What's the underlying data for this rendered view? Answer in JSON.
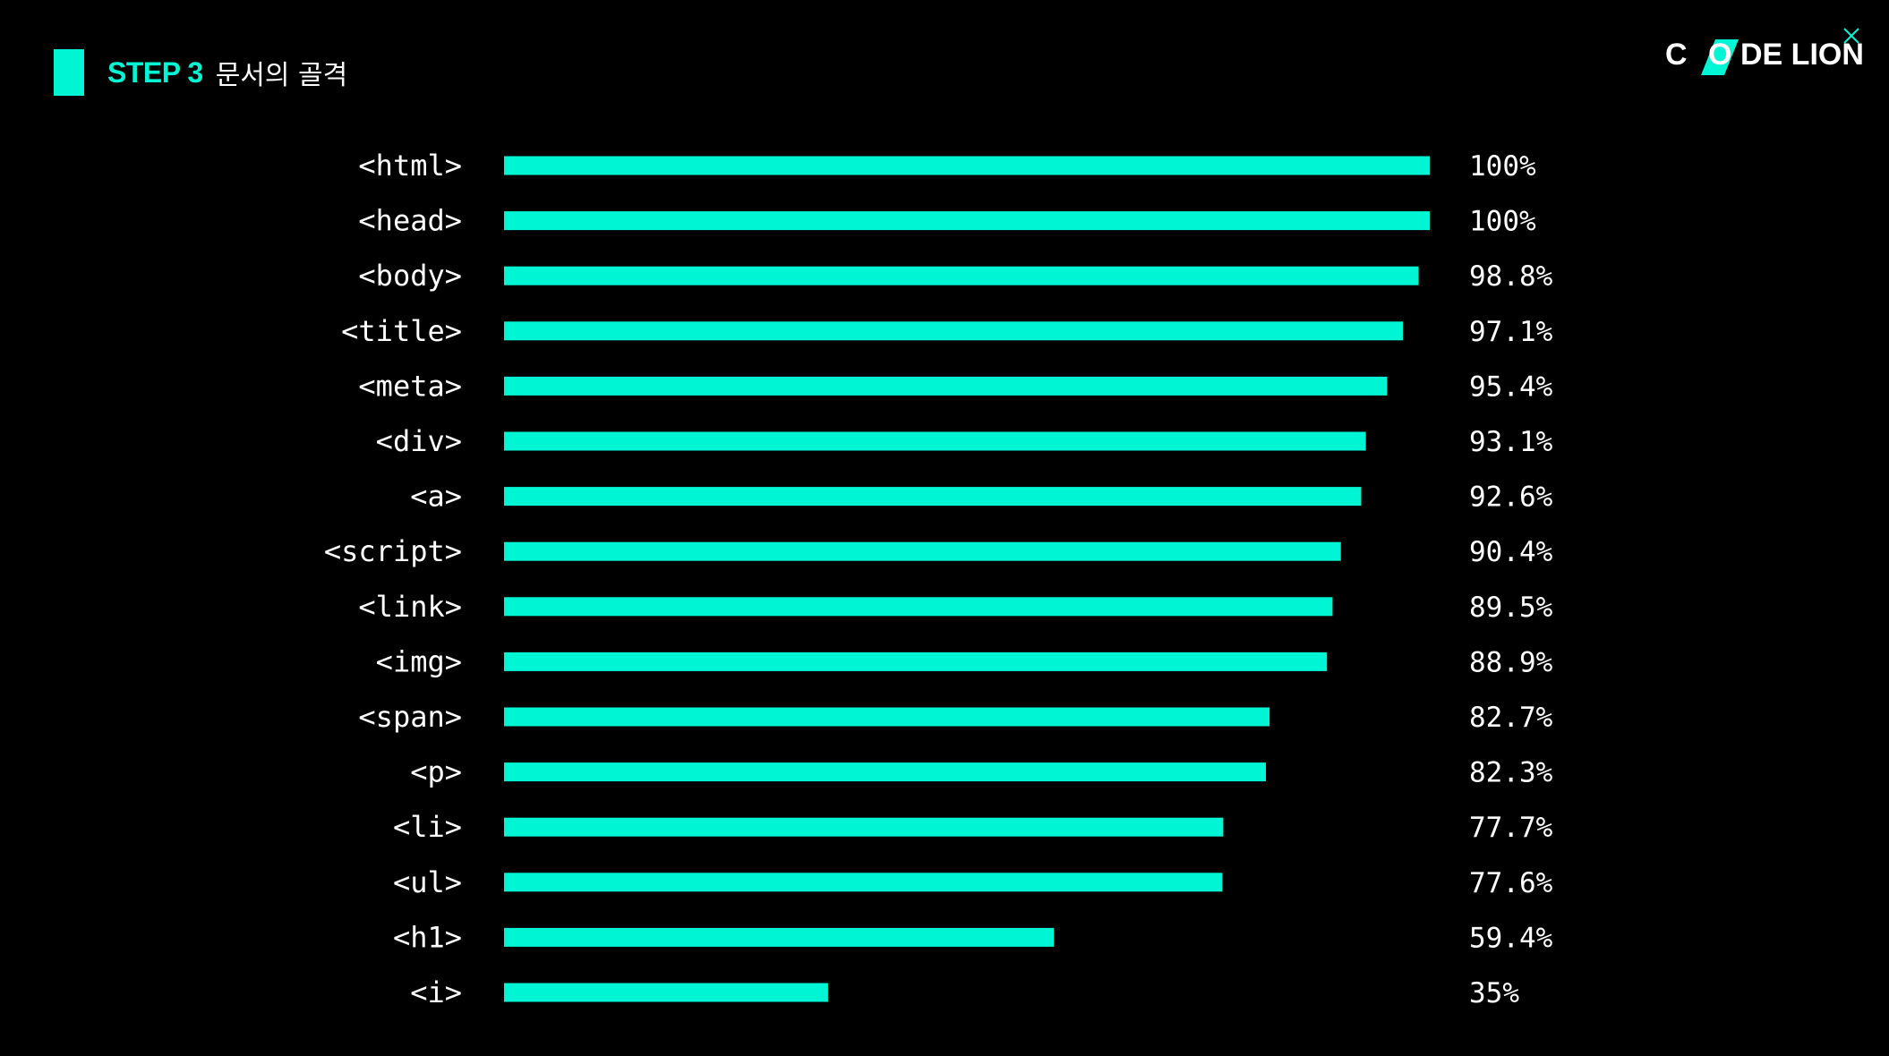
{
  "header": {
    "step_label": "STEP 3",
    "step_title": "문서의 골격"
  },
  "logo": {
    "text_left": "C",
    "text_mid": "DE LION"
  },
  "colors": {
    "background": "#000000",
    "accent": "#00f5d4",
    "text": "#ffffff"
  },
  "chart_data": {
    "type": "bar",
    "orientation": "horizontal",
    "title": "",
    "xlabel": "",
    "ylabel": "",
    "xlim": [
      0,
      100
    ],
    "grid": false,
    "legend": "none",
    "categories": [
      "<html>",
      "<head>",
      "<body>",
      "<title>",
      "<meta>",
      "<div>",
      "<a>",
      "<script>",
      "<link>",
      "<img>",
      "<span>",
      "<p>",
      "<li>",
      "<ul>",
      "<h1>",
      "<i>"
    ],
    "values": [
      100,
      100,
      98.8,
      97.1,
      95.4,
      93.1,
      92.6,
      90.4,
      89.5,
      88.9,
      82.7,
      82.3,
      77.7,
      77.6,
      59.4,
      35
    ],
    "value_labels": [
      "100%",
      "100%",
      "98.8%",
      "97.1%",
      "95.4%",
      "93.1%",
      "92.6%",
      "90.4%",
      "89.5%",
      "88.9%",
      "82.7%",
      "82.3%",
      "77.7%",
      "77.6%",
      "59.4%",
      "35%"
    ]
  }
}
